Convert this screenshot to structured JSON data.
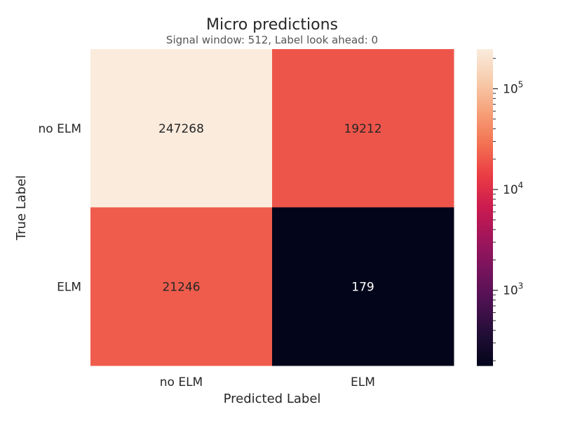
{
  "chart_data": {
    "type": "heatmap",
    "title": "Micro predictions",
    "subtitle": "Signal window: 512, Label look ahead: 0",
    "xlabel": "Predicted Label",
    "ylabel": "True Label",
    "x_categories": [
      "no ELM",
      "ELM"
    ],
    "y_categories": [
      "no ELM",
      "ELM"
    ],
    "values": [
      [
        247268,
        19212
      ],
      [
        21246,
        179
      ]
    ],
    "colorbar": {
      "scale": "log",
      "range": [
        179,
        247268
      ],
      "major_ticks": [
        {
          "value": 1000,
          "base": "10",
          "exp": "3"
        },
        {
          "value": 10000,
          "base": "10",
          "exp": "4"
        },
        {
          "value": 100000,
          "base": "10",
          "exp": "5"
        }
      ]
    },
    "colormap": "rocket",
    "grid": false
  }
}
